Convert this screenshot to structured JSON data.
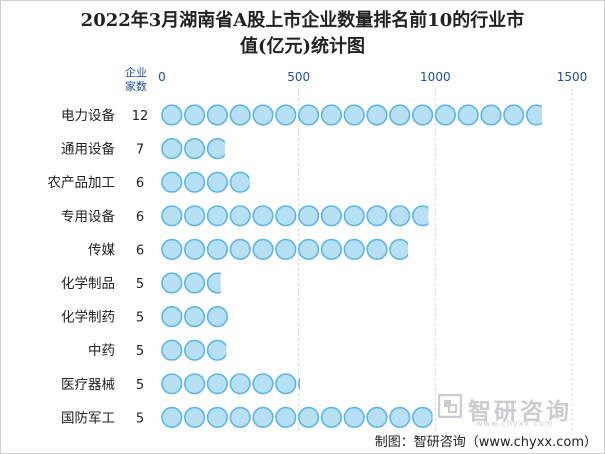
{
  "chart_data": {
    "type": "bar",
    "title_line1": "2022年3月湖南省A股上市企业数量排名前10的行业市",
    "title_line2": "值(亿元)统计图",
    "count_header": [
      "企业",
      "家数"
    ],
    "xlim": [
      0,
      1500
    ],
    "xticks": [
      0,
      500,
      1000,
      1500
    ],
    "grid": true,
    "categories": [
      "电力设备",
      "通用设备",
      "农产品加工",
      "专用设备",
      "传媒",
      "化学制品",
      "化学制药",
      "中药",
      "医疗器械",
      "国防军工"
    ],
    "company_counts": [
      12,
      7,
      6,
      6,
      6,
      5,
      5,
      5,
      5,
      5
    ],
    "values": [
      1390,
      230,
      320,
      975,
      900,
      215,
      250,
      235,
      505,
      990
    ],
    "bar_color": "#b8e0f4",
    "bar_edge_color": "#5bb6e6"
  },
  "watermark": {
    "text": "智研咨询",
    "url": "www.chyxx.com"
  },
  "source": "制图：智研咨询（www.chyxx.com）"
}
